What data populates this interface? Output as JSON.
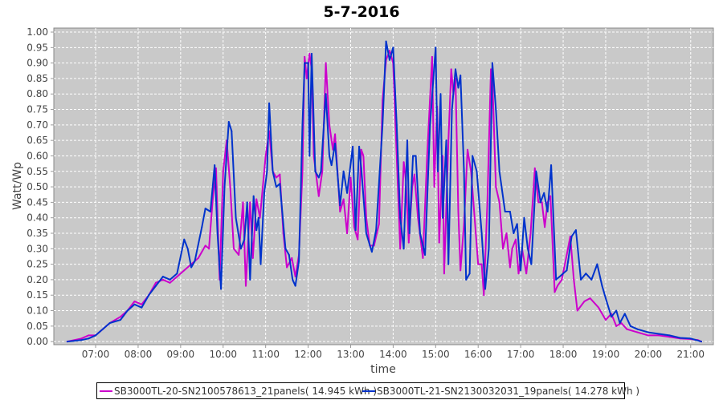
{
  "chart_data": {
    "type": "line",
    "title": "5-7-2016",
    "xlabel": "time",
    "ylabel": "Watt/Wp",
    "xlim": [
      "06:01",
      "21:32"
    ],
    "ylim": [
      -0.01,
      1.013
    ],
    "grid": true,
    "legend_position": "bottom",
    "x_ticks": [
      "07:00",
      "08:00",
      "09:00",
      "10:00",
      "11:00",
      "12:00",
      "13:00",
      "14:00",
      "15:00",
      "16:00",
      "17:00",
      "18:00",
      "19:00",
      "20:00",
      "21:00"
    ],
    "y_ticks": [
      "0.00",
      "0.05",
      "0.10",
      "0.15",
      "0.20",
      "0.25",
      "0.30",
      "0.35",
      "0.40",
      "0.45",
      "0.50",
      "0.55",
      "0.60",
      "0.65",
      "0.70",
      "0.75",
      "0.80",
      "0.85",
      "0.90",
      "0.95",
      "1.00"
    ],
    "series": [
      {
        "name": "SB3000TL-20-SN2100578613_21panels( 14.945 kWh )",
        "color": "#cc00cc",
        "points": [
          [
            "06:20",
            0.0
          ],
          [
            "06:40",
            0.01
          ],
          [
            "06:50",
            0.02
          ],
          [
            "07:00",
            0.02
          ],
          [
            "07:10",
            0.04
          ],
          [
            "07:20",
            0.06
          ],
          [
            "07:35",
            0.08
          ],
          [
            "07:45",
            0.1
          ],
          [
            "07:55",
            0.13
          ],
          [
            "08:05",
            0.12
          ],
          [
            "08:15",
            0.15
          ],
          [
            "08:25",
            0.19
          ],
          [
            "08:35",
            0.2
          ],
          [
            "08:45",
            0.19
          ],
          [
            "08:55",
            0.21
          ],
          [
            "09:05",
            0.23
          ],
          [
            "09:15",
            0.25
          ],
          [
            "09:25",
            0.27
          ],
          [
            "09:35",
            0.31
          ],
          [
            "09:40",
            0.3
          ],
          [
            "09:45",
            0.45
          ],
          [
            "09:50",
            0.56
          ],
          [
            "09:55",
            0.2
          ],
          [
            "10:00",
            0.55
          ],
          [
            "10:05",
            0.65
          ],
          [
            "10:10",
            0.5
          ],
          [
            "10:15",
            0.3
          ],
          [
            "10:22",
            0.28
          ],
          [
            "10:28",
            0.45
          ],
          [
            "10:32",
            0.18
          ],
          [
            "10:38",
            0.45
          ],
          [
            "10:42",
            0.27
          ],
          [
            "10:47",
            0.46
          ],
          [
            "10:52",
            0.4
          ],
          [
            "11:00",
            0.6
          ],
          [
            "11:05",
            0.68
          ],
          [
            "11:10",
            0.55
          ],
          [
            "11:15",
            0.53
          ],
          [
            "11:20",
            0.54
          ],
          [
            "11:25",
            0.35
          ],
          [
            "11:30",
            0.24
          ],
          [
            "11:37",
            0.27
          ],
          [
            "11:42",
            0.21
          ],
          [
            "11:47",
            0.28
          ],
          [
            "11:52",
            0.55
          ],
          [
            "11:55",
            0.92
          ],
          [
            "11:58",
            0.85
          ],
          [
            "12:02",
            0.93
          ],
          [
            "12:05",
            0.88
          ],
          [
            "12:08",
            0.6
          ],
          [
            "12:15",
            0.47
          ],
          [
            "12:20",
            0.55
          ],
          [
            "12:25",
            0.9
          ],
          [
            "12:30",
            0.7
          ],
          [
            "12:35",
            0.62
          ],
          [
            "12:38",
            0.67
          ],
          [
            "12:45",
            0.42
          ],
          [
            "12:50",
            0.46
          ],
          [
            "12:55",
            0.35
          ],
          [
            "13:00",
            0.53
          ],
          [
            "13:05",
            0.37
          ],
          [
            "13:10",
            0.33
          ],
          [
            "13:15",
            0.62
          ],
          [
            "13:18",
            0.6
          ],
          [
            "13:22",
            0.4
          ],
          [
            "13:27",
            0.31
          ],
          [
            "13:33",
            0.31
          ],
          [
            "13:40",
            0.38
          ],
          [
            "13:45",
            0.78
          ],
          [
            "13:50",
            0.91
          ],
          [
            "13:55",
            0.94
          ],
          [
            "14:00",
            0.9
          ],
          [
            "14:05",
            0.6
          ],
          [
            "14:10",
            0.3
          ],
          [
            "14:15",
            0.58
          ],
          [
            "14:18",
            0.52
          ],
          [
            "14:22",
            0.32
          ],
          [
            "14:27",
            0.5
          ],
          [
            "14:30",
            0.54
          ],
          [
            "14:35",
            0.4
          ],
          [
            "14:42",
            0.27
          ],
          [
            "14:48",
            0.6
          ],
          [
            "14:55",
            0.92
          ],
          [
            "14:58",
            0.5
          ],
          [
            "15:02",
            0.76
          ],
          [
            "15:05",
            0.32
          ],
          [
            "15:10",
            0.6
          ],
          [
            "15:12",
            0.22
          ],
          [
            "15:18",
            0.65
          ],
          [
            "15:22",
            0.88
          ],
          [
            "15:25",
            0.8
          ],
          [
            "15:28",
            0.85
          ],
          [
            "15:32",
            0.42
          ],
          [
            "15:35",
            0.23
          ],
          [
            "15:40",
            0.38
          ],
          [
            "15:45",
            0.62
          ],
          [
            "15:50",
            0.55
          ],
          [
            "15:55",
            0.4
          ],
          [
            "16:00",
            0.25
          ],
          [
            "16:05",
            0.25
          ],
          [
            "16:08",
            0.15
          ],
          [
            "16:13",
            0.45
          ],
          [
            "16:18",
            0.88
          ],
          [
            "16:20",
            0.85
          ],
          [
            "16:25",
            0.5
          ],
          [
            "16:30",
            0.45
          ],
          [
            "16:35",
            0.3
          ],
          [
            "16:40",
            0.35
          ],
          [
            "16:45",
            0.24
          ],
          [
            "16:48",
            0.3
          ],
          [
            "16:53",
            0.33
          ],
          [
            "16:57",
            0.22
          ],
          [
            "17:02",
            0.3
          ],
          [
            "17:08",
            0.22
          ],
          [
            "17:14",
            0.35
          ],
          [
            "17:20",
            0.56
          ],
          [
            "17:25",
            0.45
          ],
          [
            "17:30",
            0.45
          ],
          [
            "17:34",
            0.37
          ],
          [
            "17:38",
            0.45
          ],
          [
            "17:42",
            0.47
          ],
          [
            "17:48",
            0.16
          ],
          [
            "17:52",
            0.18
          ],
          [
            "17:58",
            0.2
          ],
          [
            "18:05",
            0.28
          ],
          [
            "18:10",
            0.34
          ],
          [
            "18:15",
            0.2
          ],
          [
            "18:20",
            0.1
          ],
          [
            "18:30",
            0.13
          ],
          [
            "18:38",
            0.14
          ],
          [
            "18:50",
            0.11
          ],
          [
            "19:00",
            0.07
          ],
          [
            "19:08",
            0.09
          ],
          [
            "19:15",
            0.05
          ],
          [
            "19:22",
            0.06
          ],
          [
            "19:30",
            0.04
          ],
          [
            "19:45",
            0.03
          ],
          [
            "20:00",
            0.02
          ],
          [
            "20:15",
            0.02
          ],
          [
            "20:30",
            0.015
          ],
          [
            "20:45",
            0.01
          ],
          [
            "21:00",
            0.008
          ],
          [
            "21:10",
            0.005
          ],
          [
            "21:15",
            0.0
          ]
        ]
      },
      {
        "name": "SB3000TL-21-SN2130032031_19panels( 14.278 kWh )",
        "color": "#0033cc",
        "points": [
          [
            "06:20",
            0.0
          ],
          [
            "06:40",
            0.005
          ],
          [
            "06:50",
            0.01
          ],
          [
            "07:00",
            0.02
          ],
          [
            "07:10",
            0.04
          ],
          [
            "07:20",
            0.06
          ],
          [
            "07:35",
            0.07
          ],
          [
            "07:45",
            0.1
          ],
          [
            "07:55",
            0.12
          ],
          [
            "08:05",
            0.11
          ],
          [
            "08:15",
            0.15
          ],
          [
            "08:25",
            0.18
          ],
          [
            "08:35",
            0.21
          ],
          [
            "08:45",
            0.2
          ],
          [
            "08:55",
            0.22
          ],
          [
            "09:05",
            0.33
          ],
          [
            "09:10",
            0.3
          ],
          [
            "09:15",
            0.24
          ],
          [
            "09:20",
            0.26
          ],
          [
            "09:30",
            0.37
          ],
          [
            "09:35",
            0.43
          ],
          [
            "09:42",
            0.42
          ],
          [
            "09:48",
            0.57
          ],
          [
            "09:52",
            0.35
          ],
          [
            "09:57",
            0.17
          ],
          [
            "10:02",
            0.5
          ],
          [
            "10:08",
            0.71
          ],
          [
            "10:12",
            0.68
          ],
          [
            "10:18",
            0.4
          ],
          [
            "10:25",
            0.3
          ],
          [
            "10:30",
            0.33
          ],
          [
            "10:34",
            0.45
          ],
          [
            "10:38",
            0.2
          ],
          [
            "10:43",
            0.47
          ],
          [
            "10:47",
            0.36
          ],
          [
            "10:50",
            0.4
          ],
          [
            "10:53",
            0.25
          ],
          [
            "10:58",
            0.48
          ],
          [
            "11:02",
            0.55
          ],
          [
            "11:05",
            0.77
          ],
          [
            "11:10",
            0.55
          ],
          [
            "11:15",
            0.5
          ],
          [
            "11:20",
            0.51
          ],
          [
            "11:28",
            0.3
          ],
          [
            "11:33",
            0.28
          ],
          [
            "11:38",
            0.2
          ],
          [
            "11:42",
            0.18
          ],
          [
            "11:47",
            0.26
          ],
          [
            "11:52",
            0.7
          ],
          [
            "11:55",
            0.9
          ],
          [
            "12:00",
            0.9
          ],
          [
            "12:02",
            0.6
          ],
          [
            "12:05",
            0.93
          ],
          [
            "12:10",
            0.55
          ],
          [
            "12:15",
            0.53
          ],
          [
            "12:18",
            0.55
          ],
          [
            "12:25",
            0.8
          ],
          [
            "12:30",
            0.6
          ],
          [
            "12:33",
            0.57
          ],
          [
            "12:38",
            0.64
          ],
          [
            "12:45",
            0.44
          ],
          [
            "12:50",
            0.55
          ],
          [
            "12:55",
            0.48
          ],
          [
            "13:03",
            0.63
          ],
          [
            "13:07",
            0.36
          ],
          [
            "13:12",
            0.63
          ],
          [
            "13:15",
            0.56
          ],
          [
            "13:22",
            0.35
          ],
          [
            "13:30",
            0.29
          ],
          [
            "13:36",
            0.36
          ],
          [
            "13:45",
            0.7
          ],
          [
            "13:50",
            0.97
          ],
          [
            "13:55",
            0.91
          ],
          [
            "14:00",
            0.95
          ],
          [
            "14:05",
            0.7
          ],
          [
            "14:10",
            0.4
          ],
          [
            "14:15",
            0.3
          ],
          [
            "14:20",
            0.65
          ],
          [
            "14:23",
            0.35
          ],
          [
            "14:28",
            0.6
          ],
          [
            "14:32",
            0.6
          ],
          [
            "14:38",
            0.35
          ],
          [
            "14:45",
            0.28
          ],
          [
            "14:52",
            0.7
          ],
          [
            "15:00",
            0.95
          ],
          [
            "15:03",
            0.55
          ],
          [
            "15:07",
            0.8
          ],
          [
            "15:10",
            0.4
          ],
          [
            "15:15",
            0.65
          ],
          [
            "15:18",
            0.25
          ],
          [
            "15:23",
            0.75
          ],
          [
            "15:28",
            0.88
          ],
          [
            "15:32",
            0.82
          ],
          [
            "15:35",
            0.86
          ],
          [
            "15:40",
            0.55
          ],
          [
            "15:43",
            0.2
          ],
          [
            "15:48",
            0.22
          ],
          [
            "15:52",
            0.6
          ],
          [
            "15:58",
            0.55
          ],
          [
            "16:05",
            0.35
          ],
          [
            "16:10",
            0.17
          ],
          [
            "16:15",
            0.3
          ],
          [
            "16:20",
            0.9
          ],
          [
            "16:25",
            0.75
          ],
          [
            "16:30",
            0.55
          ],
          [
            "16:38",
            0.42
          ],
          [
            "16:45",
            0.42
          ],
          [
            "16:50",
            0.35
          ],
          [
            "16:55",
            0.38
          ],
          [
            "17:00",
            0.23
          ],
          [
            "17:05",
            0.4
          ],
          [
            "17:10",
            0.3
          ],
          [
            "17:15",
            0.25
          ],
          [
            "17:22",
            0.55
          ],
          [
            "17:28",
            0.45
          ],
          [
            "17:33",
            0.48
          ],
          [
            "17:38",
            0.42
          ],
          [
            "17:43",
            0.57
          ],
          [
            "17:50",
            0.2
          ],
          [
            "17:55",
            0.21
          ],
          [
            "18:05",
            0.23
          ],
          [
            "18:12",
            0.34
          ],
          [
            "18:18",
            0.36
          ],
          [
            "18:25",
            0.2
          ],
          [
            "18:32",
            0.22
          ],
          [
            "18:40",
            0.2
          ],
          [
            "18:48",
            0.25
          ],
          [
            "18:55",
            0.18
          ],
          [
            "19:00",
            0.14
          ],
          [
            "19:08",
            0.08
          ],
          [
            "19:15",
            0.1
          ],
          [
            "19:20",
            0.06
          ],
          [
            "19:27",
            0.09
          ],
          [
            "19:35",
            0.05
          ],
          [
            "19:45",
            0.04
          ],
          [
            "20:00",
            0.03
          ],
          [
            "20:15",
            0.025
          ],
          [
            "20:30",
            0.02
          ],
          [
            "20:45",
            0.012
          ],
          [
            "21:00",
            0.01
          ],
          [
            "21:15",
            0.0
          ]
        ]
      }
    ]
  }
}
